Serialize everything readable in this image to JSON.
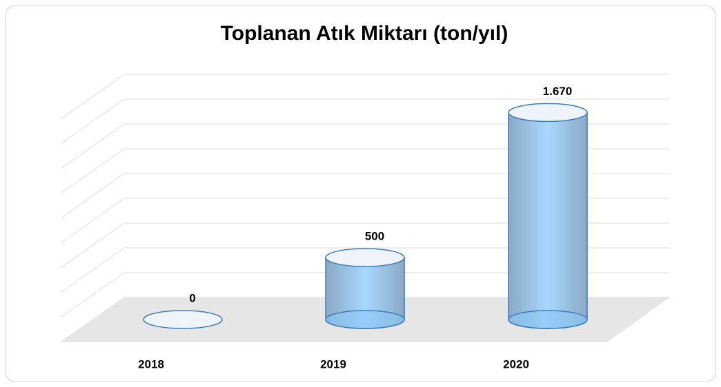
{
  "chart_data": {
    "type": "cylinder",
    "title": "Toplanan Atık Miktarı (ton/yıl)",
    "categories": [
      "2018",
      "2019",
      "2020"
    ],
    "values": [
      0,
      500,
      1670
    ],
    "value_labels": [
      "0",
      "500",
      "1.670"
    ],
    "color": "#a8d8ff",
    "ylim": [
      0,
      1800
    ],
    "yticks": [
      0,
      200,
      400,
      600,
      800,
      1000,
      1200,
      1400,
      1600,
      1800
    ],
    "grid": true
  }
}
